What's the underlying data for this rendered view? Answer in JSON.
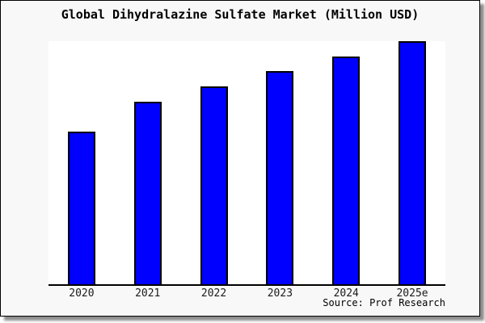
{
  "chart": {
    "title": "Global Dihydralazine Sulfate Market (Million USD)",
    "source": "Source: Prof Research"
  },
  "chart_data": {
    "type": "bar",
    "title": "Global Dihydralazine Sulfate Market (Million USD)",
    "categories": [
      "2020",
      "2021",
      "2022",
      "2023",
      "2024",
      "2025e"
    ],
    "values": [
      62.8,
      75.2,
      81.4,
      87.7,
      93.7,
      100
    ],
    "value_scale": "relative bar heights; y-axis has no tick labels, tallest bar (2025e) = 100",
    "xlabel": "",
    "ylabel": "",
    "ylim": [
      0,
      100
    ],
    "grid": false,
    "legend": false,
    "source": "Source: Prof Research",
    "colors": {
      "bar_fill": "#0000ff",
      "bar_border": "#000000",
      "plot_background": "#ffffff",
      "canvas_background": "#f8f8f8",
      "axis_line": "#000000",
      "text": "#000000"
    }
  }
}
